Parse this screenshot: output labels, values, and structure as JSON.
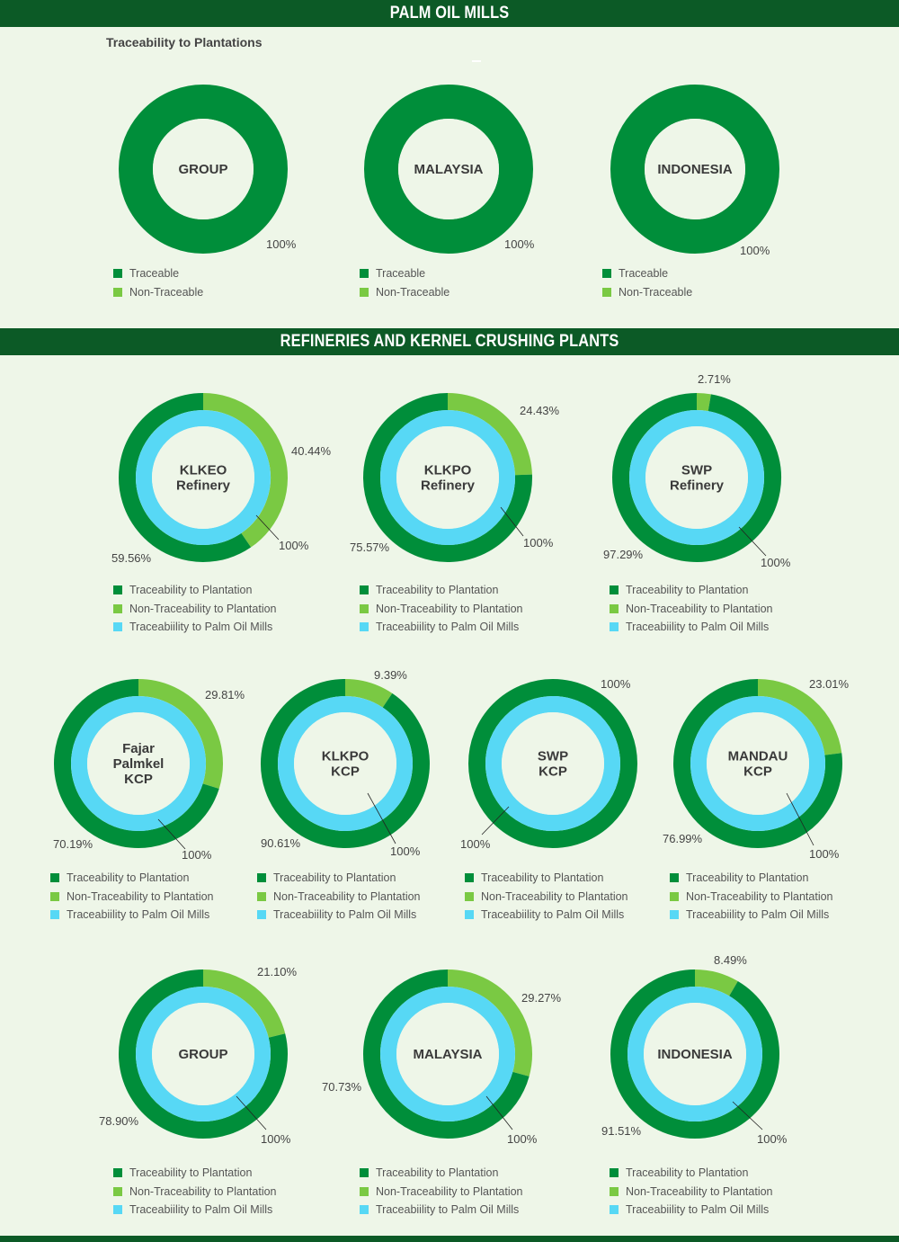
{
  "sections": {
    "mills": {
      "title": "PALM OIL MILLS",
      "subtitle": "Traceability to Plantations"
    },
    "refineries": {
      "title": "REFINERIES AND KERNEL CRUSHING PLANTS"
    }
  },
  "colors": {
    "traceable": "#008e3a",
    "non_traceable": "#7ac943",
    "palm_oil_mills": "#57d8f5",
    "center": "#eef6e8"
  },
  "legend_sets": {
    "mills": [
      {
        "label": "Traceable",
        "color": "#008e3a"
      },
      {
        "label": "Non-Traceable",
        "color": "#7ac943"
      }
    ],
    "refineries": [
      {
        "label": "Traceability to Plantation",
        "color": "#008e3a"
      },
      {
        "label": "Non-Traceability to Plantation",
        "color": "#7ac943"
      },
      {
        "label": "Traceabiility to Palm Oil Mills",
        "color": "#57d8f5"
      }
    ]
  },
  "chart_data": [
    {
      "type": "pie",
      "name": "GROUP",
      "center_lines": [
        "GROUP"
      ],
      "section": "mills",
      "series": [
        {
          "name": "Traceable",
          "value": 100
        },
        {
          "name": "Non-Traceable",
          "value": 0
        }
      ],
      "labels": [
        "100%"
      ]
    },
    {
      "type": "pie",
      "name": "MALAYSIA",
      "center_lines": [
        "MALAYSIA"
      ],
      "section": "mills",
      "series": [
        {
          "name": "Traceable",
          "value": 100
        },
        {
          "name": "Non-Traceable",
          "value": 0
        }
      ],
      "labels": [
        "100%"
      ]
    },
    {
      "type": "pie",
      "name": "INDONESIA",
      "center_lines": [
        "INDONESIA"
      ],
      "section": "mills",
      "series": [
        {
          "name": "Traceable",
          "value": 100
        },
        {
          "name": "Non-Traceable",
          "value": 0
        }
      ],
      "labels": [
        "100%"
      ]
    },
    {
      "type": "pie",
      "name": "KLKEO Refinery",
      "center_lines": [
        "KLKEO",
        "Refinery"
      ],
      "section": "refineries",
      "plantation": {
        "traceable": 59.56,
        "non_traceable": 40.44
      },
      "palm_oil_mills": 100,
      "labels": [
        "59.56%",
        "40.44%",
        "100%"
      ]
    },
    {
      "type": "pie",
      "name": "KLKPO Refinery",
      "center_lines": [
        "KLKPO",
        "Refinery"
      ],
      "section": "refineries",
      "plantation": {
        "traceable": 75.57,
        "non_traceable": 24.43
      },
      "palm_oil_mills": 100,
      "labels": [
        "75.57%",
        "24.43%",
        "100%"
      ]
    },
    {
      "type": "pie",
      "name": "SWP Refinery",
      "center_lines": [
        "SWP",
        "Refinery"
      ],
      "section": "refineries",
      "plantation": {
        "traceable": 97.29,
        "non_traceable": 2.71
      },
      "palm_oil_mills": 100,
      "labels": [
        "97.29%",
        "2.71%",
        "100%"
      ]
    },
    {
      "type": "pie",
      "name": "Fajar Palmkel KCP",
      "center_lines": [
        "Fajar",
        "Palmkel",
        "KCP"
      ],
      "section": "refineries",
      "plantation": {
        "traceable": 70.19,
        "non_traceable": 29.81
      },
      "palm_oil_mills": 100,
      "labels": [
        "70.19%",
        "29.81%",
        "100%"
      ]
    },
    {
      "type": "pie",
      "name": "KLKPO KCP",
      "center_lines": [
        "KLKPO",
        "KCP"
      ],
      "section": "refineries",
      "plantation": {
        "traceable": 90.61,
        "non_traceable": 9.39
      },
      "palm_oil_mills": 100,
      "labels": [
        "90.61%",
        "9.39%",
        "100%"
      ]
    },
    {
      "type": "pie",
      "name": "SWP KCP",
      "center_lines": [
        "SWP",
        "KCP"
      ],
      "section": "refineries",
      "plantation": {
        "traceable": 100,
        "non_traceable": 0
      },
      "palm_oil_mills": 100,
      "labels": [
        "100%",
        "100%"
      ]
    },
    {
      "type": "pie",
      "name": "MANDAU KCP",
      "center_lines": [
        "MANDAU",
        "KCP"
      ],
      "section": "refineries",
      "plantation": {
        "traceable": 76.99,
        "non_traceable": 23.01
      },
      "palm_oil_mills": 100,
      "labels": [
        "76.99%",
        "23.01%",
        "100%"
      ]
    },
    {
      "type": "pie",
      "name": "GROUP",
      "center_lines": [
        "GROUP"
      ],
      "section": "refineries",
      "plantation": {
        "traceable": 78.9,
        "non_traceable": 21.1
      },
      "palm_oil_mills": 100,
      "labels": [
        "78.90%",
        "21.10%",
        "100%"
      ]
    },
    {
      "type": "pie",
      "name": "MALAYSIA",
      "center_lines": [
        "MALAYSIA"
      ],
      "section": "refineries",
      "plantation": {
        "traceable": 70.73,
        "non_traceable": 29.27
      },
      "palm_oil_mills": 100,
      "labels": [
        "70.73%",
        "29.27%",
        "100%"
      ]
    },
    {
      "type": "pie",
      "name": "INDONESIA",
      "center_lines": [
        "INDONESIA"
      ],
      "section": "refineries",
      "plantation": {
        "traceable": 91.51,
        "non_traceable": 8.49
      },
      "palm_oil_mills": 100,
      "labels": [
        "91.51%",
        "8.49%",
        "100%"
      ]
    }
  ]
}
